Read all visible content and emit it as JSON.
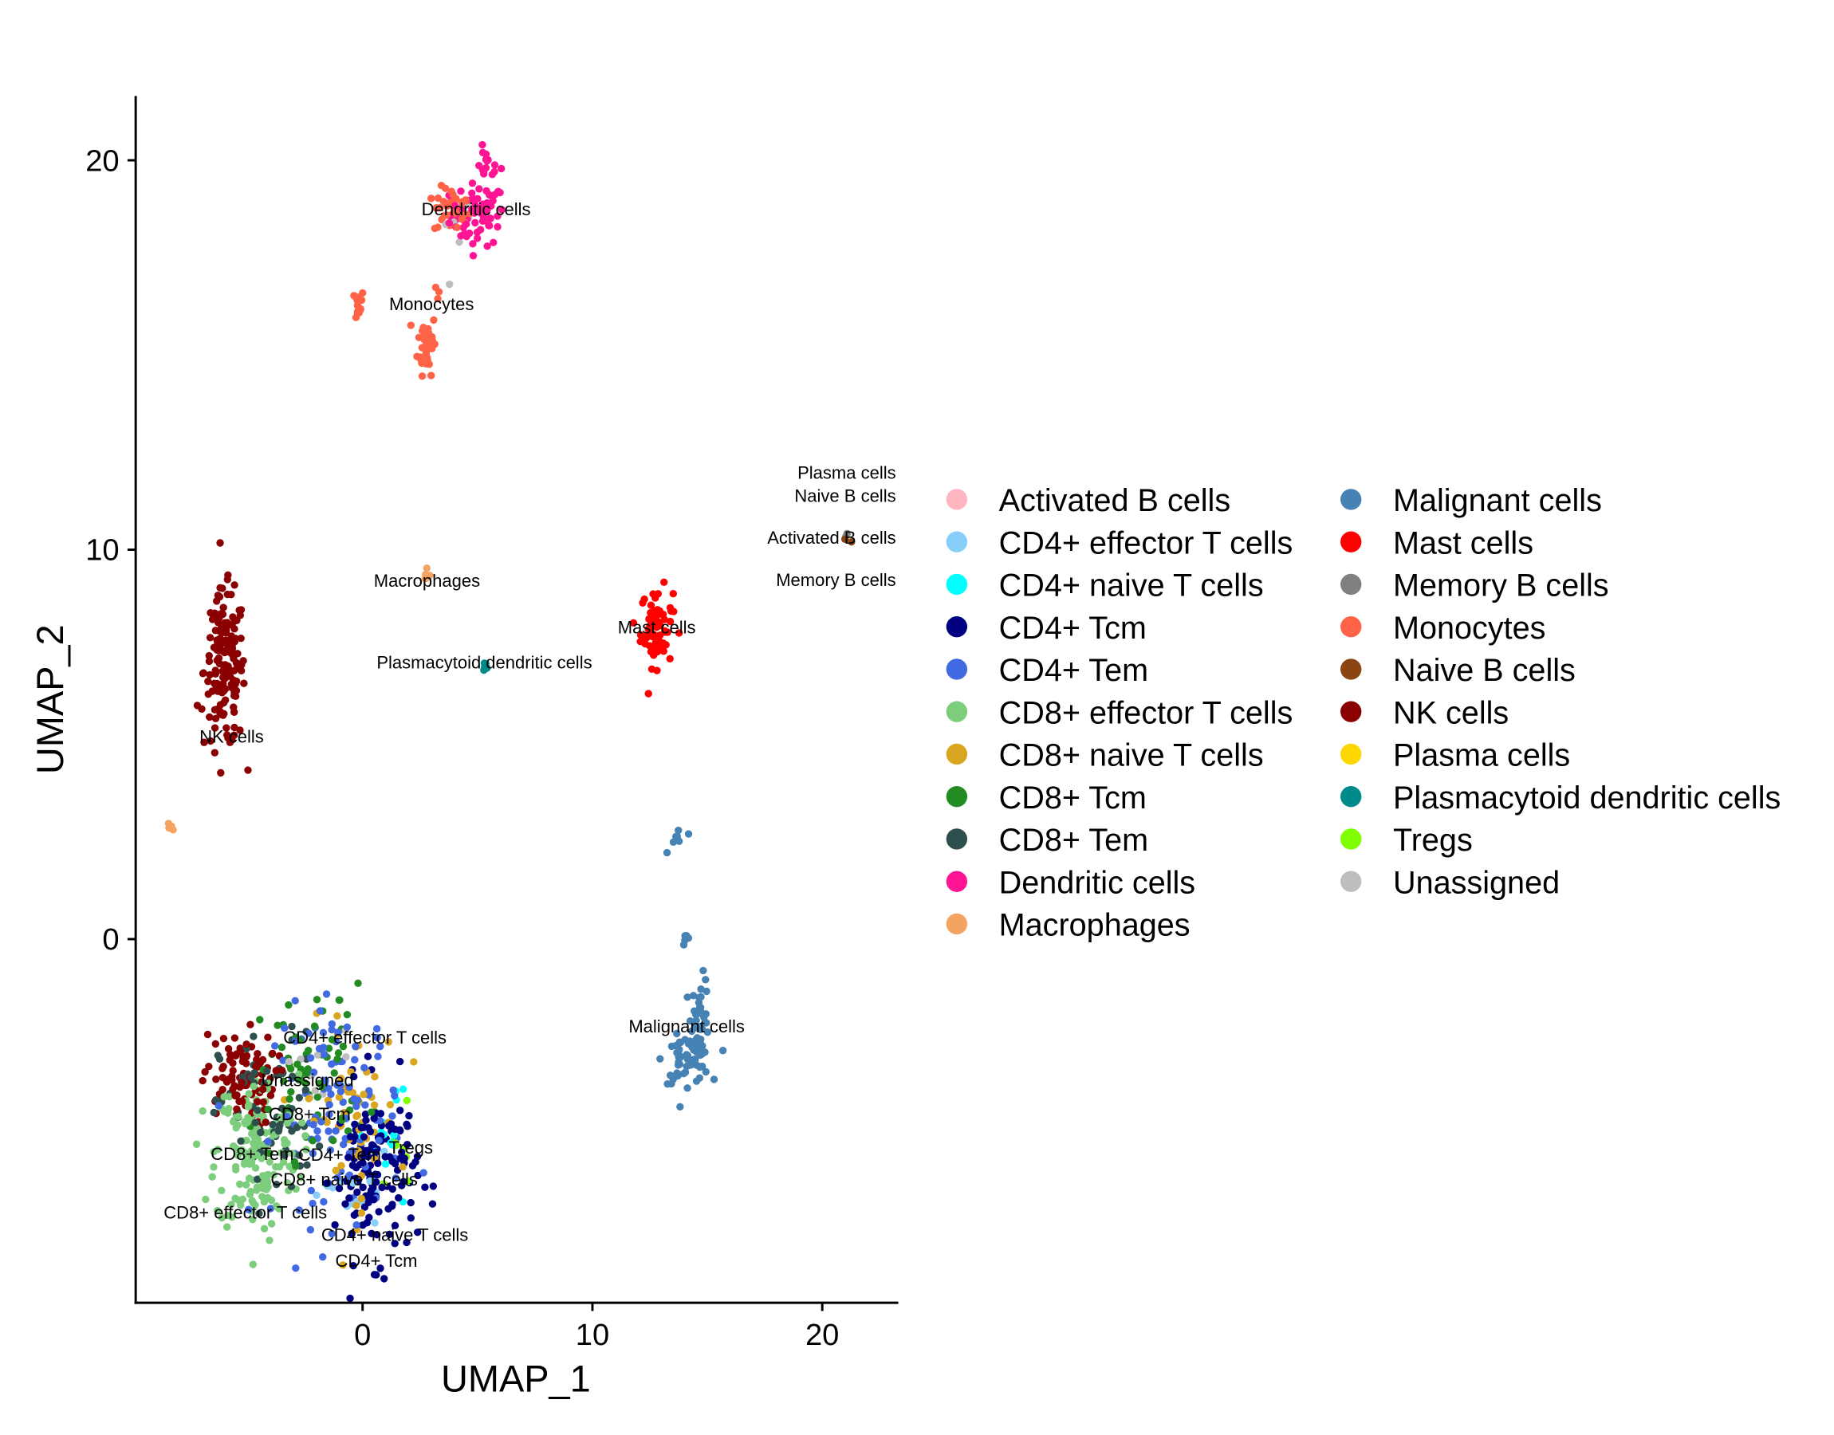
{
  "chart_data": {
    "type": "scatter",
    "title": "",
    "xlabel": "UMAP_1",
    "ylabel": "UMAP_2",
    "xlim": [
      -9.9,
      23.3
    ],
    "ylim": [
      -9.35,
      21.7
    ],
    "xticks": [
      0,
      10,
      20
    ],
    "yticks": [
      0,
      10,
      20
    ],
    "grid": false,
    "legend_placement": "right",
    "legend": [
      {
        "name": "Activated B cells",
        "color": "#FFB6C1"
      },
      {
        "name": "CD4+ effector T cells",
        "color": "#87CEFA"
      },
      {
        "name": "CD4+ naive T cells",
        "color": "#00FFFF"
      },
      {
        "name": "CD4+ Tcm",
        "color": "#000080"
      },
      {
        "name": "CD4+ Tem",
        "color": "#4169E1"
      },
      {
        "name": "CD8+ effector T cells",
        "color": "#7CCD7C"
      },
      {
        "name": "CD8+ naive T cells",
        "color": "#DAA520"
      },
      {
        "name": "CD8+ Tcm",
        "color": "#228B22"
      },
      {
        "name": "CD8+ Tem",
        "color": "#2F4F4F"
      },
      {
        "name": "Dendritic cells",
        "color": "#FF1493"
      },
      {
        "name": "Macrophages",
        "color": "#F4A460"
      },
      {
        "name": "Malignant cells",
        "color": "#4682B4"
      },
      {
        "name": "Mast cells",
        "color": "#FF0000"
      },
      {
        "name": "Memory B cells",
        "color": "#808080"
      },
      {
        "name": "Monocytes",
        "color": "#FF6347"
      },
      {
        "name": "Naive B cells",
        "color": "#8B4513"
      },
      {
        "name": "NK cells",
        "color": "#8B0000"
      },
      {
        "name": "Plasma cells",
        "color": "#FFD700"
      },
      {
        "name": "Plasmacytoid dendritic cells",
        "color": "#008B8B"
      },
      {
        "name": "Tregs",
        "color": "#7FFF00"
      },
      {
        "name": "Unassigned",
        "color": "#BEBEBE"
      }
    ],
    "clusters": [
      {
        "type": "Dendritic cells",
        "center": [
          5.0,
          18.6
        ],
        "sd": [
          0.6,
          0.4
        ],
        "n": 70
      },
      {
        "type": "Dendritic cells",
        "center": [
          5.4,
          19.9
        ],
        "sd": [
          0.3,
          0.2
        ],
        "n": 15
      },
      {
        "type": "Monocytes",
        "center": [
          3.9,
          18.7
        ],
        "sd": [
          0.4,
          0.3
        ],
        "n": 40
      },
      {
        "type": "Monocytes",
        "center": [
          -0.3,
          16.3
        ],
        "sd": [
          0.2,
          0.2
        ],
        "n": 15
      },
      {
        "type": "Monocytes",
        "center": [
          2.8,
          15.3
        ],
        "sd": [
          0.2,
          0.4
        ],
        "n": 45
      },
      {
        "type": "Monocytes",
        "center": [
          3.1,
          16.7
        ],
        "sd": [
          0.1,
          0.2
        ],
        "n": 3
      },
      {
        "type": "Unassigned",
        "center": [
          4.3,
          18.2
        ],
        "sd": [
          0.5,
          0.6
        ],
        "n": 6
      },
      {
        "type": "Memory B cells",
        "center": [
          21.0,
          10.3
        ],
        "sd": [
          0.1,
          0.05
        ],
        "n": 2
      },
      {
        "type": "Naive B cells",
        "center": [
          21.0,
          10.3
        ],
        "sd": [
          0.1,
          0.05
        ],
        "n": 2
      },
      {
        "type": "Macrophages",
        "center": [
          2.8,
          9.3
        ],
        "sd": [
          0.1,
          0.1
        ],
        "n": 5
      },
      {
        "type": "Macrophages",
        "center": [
          -8.3,
          2.9
        ],
        "sd": [
          0.08,
          0.06
        ],
        "n": 6
      },
      {
        "type": "Plasmacytoid dendritic cells",
        "center": [
          5.3,
          7.0
        ],
        "sd": [
          0.06,
          0.1
        ],
        "n": 5
      },
      {
        "type": "Mast cells",
        "center": [
          12.8,
          8.0
        ],
        "sd": [
          0.35,
          0.5
        ],
        "n": 70
      },
      {
        "type": "NK cells",
        "center": [
          -6.0,
          6.9
        ],
        "sd": [
          0.45,
          1.0
        ],
        "n": 160
      },
      {
        "type": "Malignant cells",
        "center": [
          13.7,
          2.6
        ],
        "sd": [
          0.2,
          0.15
        ],
        "n": 8
      },
      {
        "type": "Malignant cells",
        "center": [
          14.1,
          0.0
        ],
        "sd": [
          0.08,
          0.15
        ],
        "n": 5
      },
      {
        "type": "Malignant cells",
        "center": [
          14.7,
          -2.0
        ],
        "sd": [
          0.2,
          0.5
        ],
        "n": 40
      },
      {
        "type": "Malignant cells",
        "center": [
          14.1,
          -3.1
        ],
        "sd": [
          0.5,
          0.3
        ],
        "n": 60
      },
      {
        "type": "CD8+ effector T cells",
        "center": [
          -4.6,
          -5.5
        ],
        "sd": [
          0.9,
          1.0
        ],
        "n": 170
      },
      {
        "type": "NK cells",
        "center": [
          -5.4,
          -3.6
        ],
        "sd": [
          0.8,
          0.6
        ],
        "n": 90
      },
      {
        "type": "CD8+ Tem",
        "center": [
          -4.0,
          -4.6
        ],
        "sd": [
          1.1,
          1.1
        ],
        "n": 70
      },
      {
        "type": "CD8+ Tcm",
        "center": [
          -2.2,
          -3.4
        ],
        "sd": [
          1.2,
          1.1
        ],
        "n": 70
      },
      {
        "type": "CD8+ naive T cells",
        "center": [
          -0.4,
          -4.6
        ],
        "sd": [
          1.0,
          1.2
        ],
        "n": 55
      },
      {
        "type": "CD4+ Tem",
        "center": [
          -1.0,
          -4.5
        ],
        "sd": [
          1.4,
          1.4
        ],
        "n": 110
      },
      {
        "type": "CD4+ Tcm",
        "center": [
          0.6,
          -6.0
        ],
        "sd": [
          0.9,
          1.1
        ],
        "n": 140
      },
      {
        "type": "CD4+ naive T cells",
        "center": [
          1.2,
          -5.0
        ],
        "sd": [
          0.5,
          0.7
        ],
        "n": 15
      },
      {
        "type": "CD4+ effector T cells",
        "center": [
          -0.2,
          -6.6
        ],
        "sd": [
          0.7,
          0.5
        ],
        "n": 15
      },
      {
        "type": "Tregs",
        "center": [
          1.5,
          -5.6
        ],
        "sd": [
          0.5,
          0.5
        ],
        "n": 8
      },
      {
        "type": "Unassigned",
        "center": [
          -2.4,
          -3.8
        ],
        "sd": [
          1.0,
          0.8
        ],
        "n": 10
      }
    ],
    "annotations": [
      {
        "text": "Dendritic cells",
        "x": 4.94,
        "y": 18.74
      },
      {
        "text": "Monocytes",
        "x": 3.0,
        "y": 16.3
      },
      {
        "text": "Macrophages",
        "x": 2.8,
        "y": 9.2
      },
      {
        "text": "Plasmacytoid dendritic cells",
        "x": 5.3,
        "y": 7.1
      },
      {
        "text": "Mast cells",
        "x": 12.8,
        "y": 8.0
      },
      {
        "text": "NK cells",
        "x": -5.7,
        "y": 5.2
      },
      {
        "text": "Malignant cells",
        "x": 14.1,
        "y": -2.25
      },
      {
        "text": "Activated B cells",
        "x": 21.0,
        "y": 10.3
      },
      {
        "text": "Memory B cells",
        "x": 21.0,
        "y": 10.3
      },
      {
        "text": "Naive B cells",
        "x": 21.0,
        "y": 10.3
      },
      {
        "text": "Plasma cells",
        "x": 21.1,
        "y": 10.35
      },
      {
        "text": "Unassigned",
        "x": -2.4,
        "y": -3.63
      },
      {
        "text": "CD8+ Tcm",
        "x": -2.3,
        "y": -3.96
      },
      {
        "text": "CD8+ Tem",
        "x": -4.8,
        "y": -4.44
      },
      {
        "text": "CD8+ naive T cells",
        "x": -0.8,
        "y": -4.56
      },
      {
        "text": "CD4+ Tem",
        "x": -1.0,
        "y": -5.0
      },
      {
        "text": "CD8+ effector T cells",
        "x": -5.1,
        "y": -5.4
      },
      {
        "text": "CD4+ naive T cells",
        "x": 1.4,
        "y": -5.44
      },
      {
        "text": "Tregs",
        "x": 2.1,
        "y": -5.9
      },
      {
        "text": "CD4+ Tcm",
        "x": 0.6,
        "y": -6.1
      },
      {
        "text": "CD4+ effector T cells",
        "x": 0.1,
        "y": -7.4
      }
    ]
  }
}
